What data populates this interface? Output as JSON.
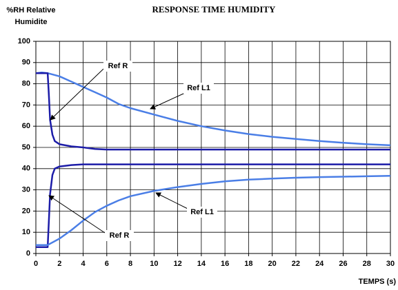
{
  "chart_data": {
    "type": "line",
    "title": "RESPONSE TIME HUMIDITY",
    "ylabel": [
      "%RH Relative",
      "Humidite"
    ],
    "xlabel": "TEMPS (s)",
    "xlim": [
      0,
      30
    ],
    "xticks": [
      0,
      2,
      4,
      6,
      8,
      10,
      12,
      14,
      16,
      18,
      20,
      22,
      24,
      26,
      28,
      30
    ],
    "ylim": [
      0,
      100
    ],
    "yticks": [
      0,
      10,
      20,
      30,
      40,
      50,
      60,
      70,
      80,
      90,
      100
    ],
    "grid": true,
    "series": [
      {
        "name": "Ref L1",
        "color": "#4a7ee6",
        "x": [
          0,
          0.5,
          1,
          2,
          3,
          4,
          5,
          6,
          7,
          8,
          10,
          12,
          14,
          16,
          18,
          20,
          22,
          24,
          26,
          28,
          30
        ],
        "values": [
          85,
          85.3,
          85,
          83.5,
          81,
          78.5,
          76,
          73.5,
          70.5,
          68.5,
          65.5,
          62.5,
          60,
          58,
          56.3,
          55,
          54,
          53,
          52.2,
          51.5,
          51
        ]
      },
      {
        "name": "Ref R",
        "color": "#1c1ca8",
        "x": [
          0,
          0.5,
          1,
          1.1,
          1.2,
          1.4,
          1.6,
          2,
          3,
          4,
          5,
          6,
          10,
          20,
          30
        ],
        "values": [
          85,
          85,
          85,
          75,
          63,
          56,
          53,
          51.5,
          50.5,
          50,
          49.3,
          49,
          49,
          49,
          49
        ]
      },
      {
        "name": "Ref R",
        "color": "#1c1ca8",
        "x": [
          0,
          0.5,
          1,
          1.1,
          1.2,
          1.4,
          1.6,
          2,
          3,
          4,
          6,
          10,
          20,
          30
        ],
        "values": [
          3,
          3,
          3,
          15,
          28,
          37,
          40,
          41,
          41.7,
          42,
          42,
          42,
          42,
          42
        ]
      },
      {
        "name": "Ref L1",
        "color": "#4a7ee6",
        "x": [
          0,
          0.5,
          1,
          2,
          3,
          4,
          5,
          6,
          7,
          8,
          10,
          12,
          14,
          16,
          18,
          20,
          22,
          24,
          26,
          28,
          30
        ],
        "values": [
          4,
          4,
          4,
          7,
          11,
          15.5,
          19.5,
          22.5,
          25,
          27,
          29.5,
          31.3,
          32.8,
          34,
          34.8,
          35.3,
          35.7,
          36,
          36.2,
          36.4,
          36.6
        ]
      }
    ],
    "annotations": [
      "Ref R",
      "Ref L1",
      "Ref L1",
      "Ref R"
    ]
  }
}
